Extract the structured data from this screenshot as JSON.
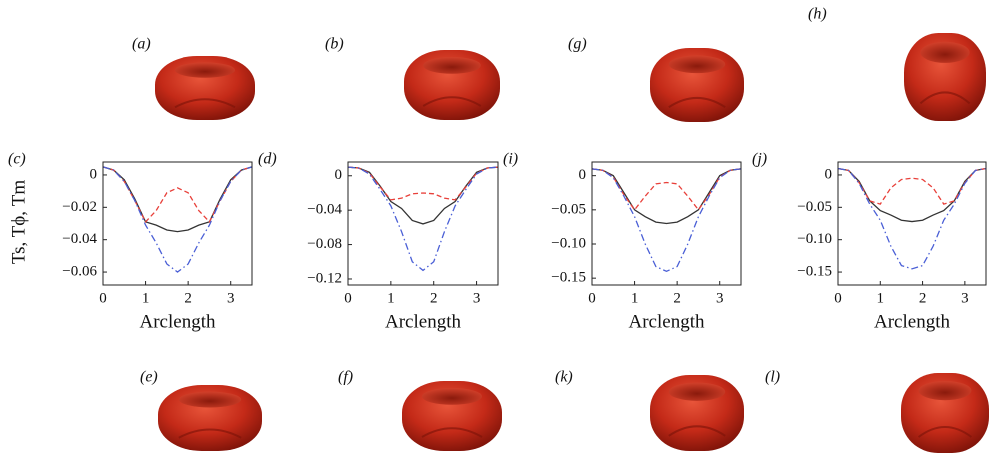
{
  "images": [
    {
      "label": "(a)"
    },
    {
      "label": "(b)"
    },
    {
      "label": "(g)"
    },
    {
      "label": "(h)"
    },
    {
      "label": "(e)"
    },
    {
      "label": "(f)"
    },
    {
      "label": "(k)"
    },
    {
      "label": "(l)"
    }
  ],
  "chart_data": [
    {
      "type": "line",
      "panel": "(c)",
      "ylabel": "Ts, Tϕ, Tm",
      "xlabel": "Arclength",
      "x": [
        0,
        0.25,
        0.5,
        0.75,
        1,
        1.25,
        1.5,
        1.75,
        2,
        2.25,
        2.5,
        2.75,
        3,
        3.25,
        3.5
      ],
      "xlim": [
        0,
        3.5
      ],
      "xticks": [
        0,
        1,
        2,
        3
      ],
      "ylim": [
        -0.068,
        0.008
      ],
      "yticks": [
        0,
        {
          "value": -0.02,
          "label": "−0.02"
        },
        {
          "value": -0.04,
          "label": "−0.04"
        },
        {
          "value": -0.06,
          "label": "−0.06"
        }
      ],
      "series": [
        {
          "color": "#333333",
          "style": "solid",
          "values": [
            0.005,
            0.003,
            -0.003,
            -0.015,
            -0.029,
            -0.031,
            -0.034,
            -0.035,
            -0.034,
            -0.031,
            -0.029,
            -0.015,
            -0.003,
            0.003,
            0.005
          ]
        },
        {
          "color": "#e8403a",
          "style": "dashed",
          "values": [
            0.005,
            0.003,
            -0.004,
            -0.016,
            -0.029,
            -0.022,
            -0.011,
            -0.008,
            -0.011,
            -0.022,
            -0.029,
            -0.016,
            -0.004,
            0.003,
            0.005
          ]
        },
        {
          "color": "#4a5fd6",
          "style": "dashdot",
          "values": [
            0.005,
            0.003,
            -0.004,
            -0.016,
            -0.031,
            -0.042,
            -0.055,
            -0.06,
            -0.055,
            -0.042,
            -0.031,
            -0.016,
            -0.004,
            0.003,
            0.005
          ]
        }
      ]
    },
    {
      "type": "line",
      "panel": "(d)",
      "xlabel": "Arclength",
      "x": [
        0,
        0.25,
        0.5,
        0.75,
        1,
        1.25,
        1.5,
        1.75,
        2,
        2.25,
        2.5,
        2.75,
        3,
        3.25,
        3.5
      ],
      "xlim": [
        0,
        3.5
      ],
      "xticks": [
        0,
        1,
        2,
        3
      ],
      "ylim": [
        -0.127,
        0.016
      ],
      "yticks": [
        0,
        {
          "value": -0.04,
          "label": "−0.04"
        },
        {
          "value": -0.08,
          "label": "−0.08"
        },
        {
          "value": -0.12,
          "label": "−0.12"
        }
      ],
      "series": [
        {
          "color": "#333333",
          "style": "solid",
          "values": [
            0.01,
            0.009,
            0.004,
            -0.012,
            -0.03,
            -0.038,
            -0.052,
            -0.056,
            -0.052,
            -0.038,
            -0.03,
            -0.012,
            0.004,
            0.009,
            0.01
          ]
        },
        {
          "color": "#e8403a",
          "style": "dashed",
          "values": [
            0.01,
            0.009,
            0.003,
            -0.013,
            -0.028,
            -0.026,
            -0.021,
            -0.02,
            -0.021,
            -0.026,
            -0.028,
            -0.013,
            0.003,
            0.009,
            0.01
          ]
        },
        {
          "color": "#4a5fd6",
          "style": "dashdot",
          "values": [
            0.01,
            0.009,
            0.002,
            -0.016,
            -0.035,
            -0.065,
            -0.1,
            -0.11,
            -0.1,
            -0.065,
            -0.035,
            -0.016,
            0.002,
            0.009,
            0.01
          ]
        }
      ]
    },
    {
      "type": "line",
      "panel": "(i)",
      "xlabel": "Arclength",
      "x": [
        0,
        0.25,
        0.5,
        0.75,
        1,
        1.25,
        1.5,
        1.75,
        2,
        2.25,
        2.5,
        2.75,
        3,
        3.25,
        3.5
      ],
      "xlim": [
        0,
        3.5
      ],
      "xticks": [
        0,
        1,
        2,
        3
      ],
      "ylim": [
        -0.16,
        0.02
      ],
      "yticks": [
        0,
        {
          "value": -0.05,
          "label": "−0.05"
        },
        {
          "value": -0.1,
          "label": "−0.10"
        },
        {
          "value": -0.15,
          "label": "−0.15"
        }
      ],
      "series": [
        {
          "color": "#333333",
          "style": "solid",
          "values": [
            0.01,
            0.008,
            0,
            -0.025,
            -0.05,
            -0.06,
            -0.068,
            -0.07,
            -0.068,
            -0.06,
            -0.05,
            -0.025,
            0,
            0.008,
            0.01
          ]
        },
        {
          "color": "#e8403a",
          "style": "dashed",
          "values": [
            0.01,
            0.008,
            -0.002,
            -0.028,
            -0.05,
            -0.03,
            -0.012,
            -0.01,
            -0.012,
            -0.03,
            -0.05,
            -0.028,
            -0.002,
            0.008,
            0.01
          ]
        },
        {
          "color": "#4a5fd6",
          "style": "dashdot",
          "values": [
            0.01,
            0.008,
            -0.003,
            -0.03,
            -0.06,
            -0.1,
            -0.133,
            -0.14,
            -0.133,
            -0.1,
            -0.06,
            -0.03,
            -0.003,
            0.008,
            0.01
          ]
        }
      ]
    },
    {
      "type": "line",
      "panel": "(j)",
      "xlabel": "Arclength",
      "x": [
        0,
        0.25,
        0.5,
        0.75,
        1,
        1.25,
        1.5,
        1.75,
        2,
        2.25,
        2.5,
        2.75,
        3,
        3.25,
        3.5
      ],
      "xlim": [
        0,
        3.5
      ],
      "xticks": [
        0,
        1,
        2,
        3
      ],
      "ylim": [
        -0.17,
        0.02
      ],
      "yticks": [
        0,
        {
          "value": -0.05,
          "label": "−0.05"
        },
        {
          "value": -0.1,
          "label": "−0.10"
        },
        {
          "value": -0.15,
          "label": "−0.15"
        }
      ],
      "series": [
        {
          "color": "#333333",
          "style": "solid",
          "values": [
            0.01,
            0.007,
            -0.01,
            -0.04,
            -0.055,
            -0.062,
            -0.07,
            -0.072,
            -0.07,
            -0.062,
            -0.055,
            -0.04,
            -0.01,
            0.007,
            0.01
          ]
        },
        {
          "color": "#e8403a",
          "style": "dashed",
          "values": [
            0.01,
            0.007,
            -0.012,
            -0.04,
            -0.045,
            -0.02,
            -0.007,
            -0.005,
            -0.007,
            -0.02,
            -0.045,
            -0.04,
            -0.012,
            0.007,
            0.01
          ]
        },
        {
          "color": "#4a5fd6",
          "style": "dashdot",
          "values": [
            0.01,
            0.007,
            -0.013,
            -0.045,
            -0.07,
            -0.11,
            -0.14,
            -0.145,
            -0.14,
            -0.11,
            -0.07,
            -0.045,
            -0.013,
            0.007,
            0.01
          ]
        }
      ]
    }
  ]
}
